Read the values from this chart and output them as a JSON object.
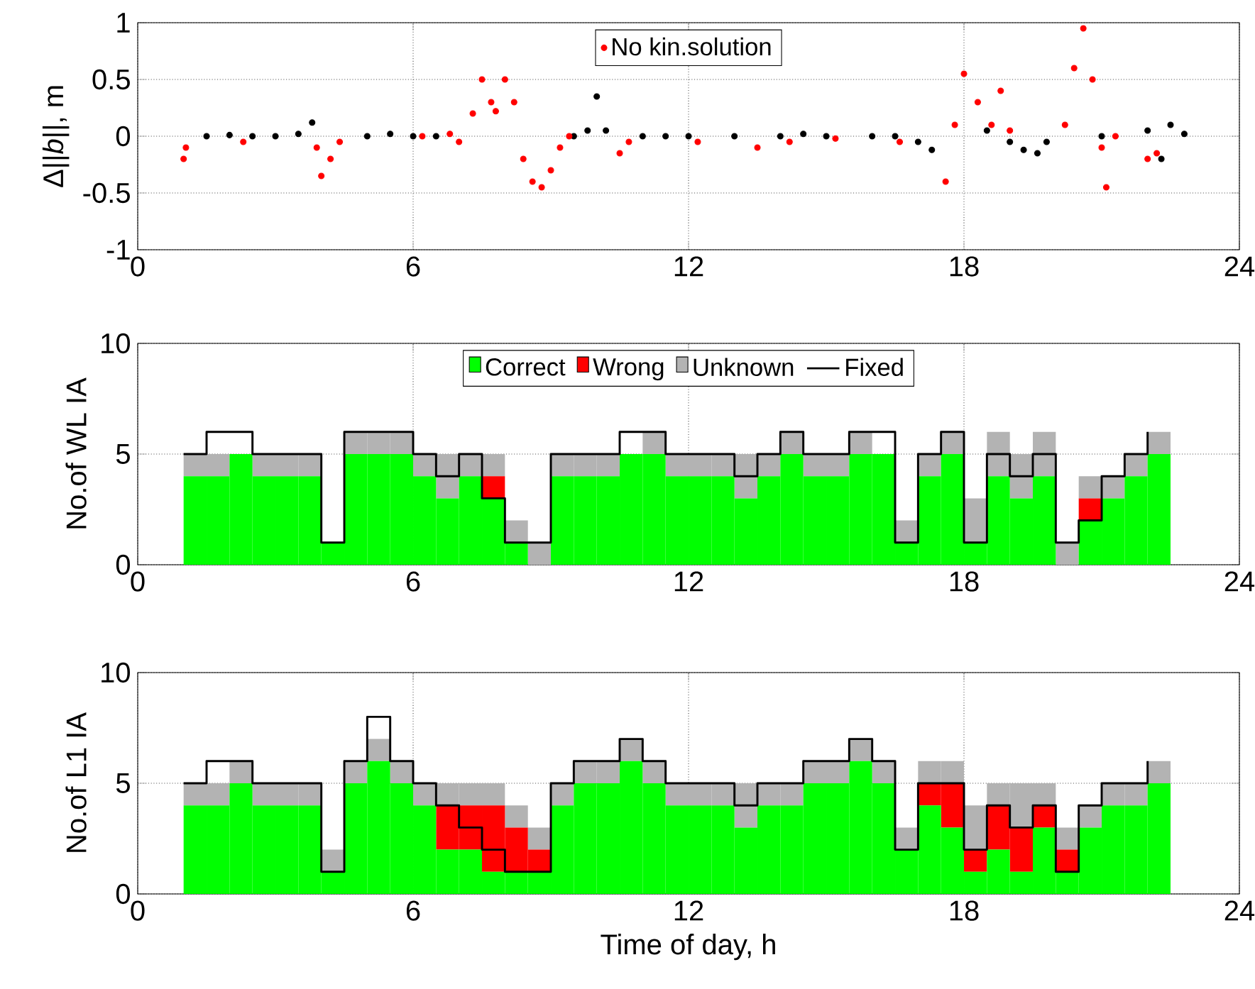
{
  "chart_data": [
    {
      "type": "scatter",
      "ylabel": "Δ||*b*||, m",
      "xlim": [
        0,
        24
      ],
      "ylim": [
        -1,
        1
      ],
      "xticks": [
        0,
        6,
        12,
        18,
        24
      ],
      "yticks": [
        -1,
        -0.5,
        0,
        0.5,
        1
      ],
      "grid": true,
      "legend": "top",
      "series": [
        {
          "color": "#000000",
          "x": [
            1.5,
            2,
            2.5,
            3,
            3.5,
            3.8,
            5,
            5.5,
            6,
            6.5,
            9.5,
            9.8,
            10,
            10.2,
            11,
            11.5,
            12,
            13,
            14,
            14.5,
            15,
            16,
            16.5,
            17,
            17.3,
            18.5,
            19,
            19.3,
            19.6,
            19.8,
            21,
            22,
            22.3,
            22.5,
            22.8
          ],
          "values": [
            0,
            0.01,
            0,
            0,
            0.02,
            0.12,
            0,
            0.02,
            0,
            0,
            0,
            0.05,
            0.35,
            0.05,
            0,
            0,
            0,
            0,
            0,
            0.02,
            0,
            0,
            0,
            -0.05,
            -0.12,
            0.05,
            -0.05,
            -0.12,
            -0.15,
            -0.05,
            0,
            0.05,
            -0.2,
            0.1,
            0.02
          ]
        },
        {
          "name": "No kin.solution",
          "color": "#ff0000",
          "x": [
            1.0,
            1.05,
            2.3,
            3.9,
            4.0,
            4.2,
            4.4,
            6.2,
            6.8,
            7.0,
            7.3,
            7.5,
            7.7,
            7.8,
            8.0,
            8.2,
            8.4,
            8.6,
            8.8,
            9.0,
            9.2,
            9.4,
            10.5,
            10.7,
            12.2,
            13.5,
            14.2,
            15.2,
            16.6,
            17.6,
            17.8,
            18.0,
            18.3,
            18.6,
            18.8,
            19.0,
            20.2,
            20.4,
            20.6,
            20.8,
            21.0,
            21.1,
            21.3,
            22.0,
            22.2
          ],
          "values": [
            -0.2,
            -0.1,
            -0.05,
            -0.1,
            -0.35,
            -0.2,
            -0.05,
            0,
            0.02,
            -0.05,
            0.2,
            0.5,
            0.3,
            0.22,
            0.5,
            0.3,
            -0.2,
            -0.4,
            -0.45,
            -0.3,
            -0.1,
            0,
            -0.15,
            -0.05,
            -0.05,
            -0.1,
            -0.05,
            -0.02,
            -0.05,
            -0.4,
            0.1,
            0.55,
            0.3,
            0.1,
            0.4,
            0.05,
            0.1,
            0.6,
            0.95,
            0.5,
            -0.1,
            -0.45,
            0,
            -0.2,
            -0.15
          ]
        }
      ]
    },
    {
      "type": "bar",
      "stacked": true,
      "ylabel": "No.of WL IA",
      "xlim": [
        0,
        24
      ],
      "ylim": [
        0,
        10
      ],
      "xticks": [
        0,
        6,
        12,
        18,
        24
      ],
      "yticks": [
        0,
        5,
        10
      ],
      "grid": true,
      "legend": "top",
      "x": [
        1.25,
        1.75,
        2.25,
        2.75,
        3.25,
        3.75,
        4.25,
        4.75,
        5.25,
        5.75,
        6.25,
        6.75,
        7.25,
        7.75,
        8.25,
        8.75,
        9.25,
        9.75,
        10.25,
        10.75,
        11.25,
        11.75,
        12.25,
        12.75,
        13.25,
        13.75,
        14.25,
        14.75,
        15.25,
        15.75,
        16.25,
        16.75,
        17.25,
        17.75,
        18.25,
        18.75,
        19.25,
        19.75,
        20.25,
        20.75,
        21.25,
        21.75,
        22.25
      ],
      "series": [
        {
          "name": "Correct",
          "color": "#00ff00",
          "values": [
            4,
            4,
            5,
            4,
            4,
            4,
            1,
            5,
            5,
            5,
            4,
            3,
            4,
            3,
            1,
            0,
            4,
            4,
            4,
            5,
            5,
            4,
            4,
            4,
            3,
            4,
            5,
            4,
            4,
            5,
            5,
            1,
            4,
            5,
            1,
            4,
            3,
            4,
            0,
            2,
            3,
            4,
            5
          ]
        },
        {
          "name": "Wrong",
          "color": "#ff0000",
          "values": [
            0,
            0,
            0,
            0,
            0,
            0,
            0,
            0,
            0,
            0,
            0,
            0,
            0,
            1,
            0,
            0,
            0,
            0,
            0,
            0,
            0,
            0,
            0,
            0,
            0,
            0,
            0,
            0,
            0,
            0,
            0,
            0,
            0,
            0,
            0,
            0,
            0,
            0,
            0,
            1,
            0,
            0,
            0
          ]
        },
        {
          "name": "Unknown",
          "color": "#b3b3b3",
          "values": [
            1,
            1,
            0,
            1,
            1,
            1,
            0,
            1,
            1,
            1,
            1,
            2,
            1,
            1,
            1,
            1,
            1,
            1,
            1,
            0,
            1,
            1,
            1,
            1,
            2,
            1,
            1,
            1,
            1,
            1,
            0,
            1,
            1,
            1,
            2,
            2,
            2,
            2,
            1,
            1,
            1,
            1,
            1
          ]
        },
        {
          "name": "Fixed",
          "type": "step",
          "color": "#000000",
          "x": [
            1.0,
            1.5,
            2.0,
            2.5,
            3.0,
            3.5,
            4.0,
            4.5,
            5.0,
            5.5,
            6.0,
            6.5,
            7.0,
            7.5,
            8.0,
            8.5,
            9.0,
            9.5,
            10.0,
            10.5,
            11.0,
            11.5,
            12.0,
            12.5,
            13.0,
            13.5,
            14.0,
            14.5,
            15.0,
            15.5,
            16.0,
            16.5,
            17.0,
            17.5,
            18.0,
            18.5,
            19.0,
            19.5,
            20.0,
            20.5,
            21.0,
            21.5,
            22.0
          ],
          "values": [
            5,
            6,
            6,
            5,
            5,
            5,
            1,
            6,
            6,
            6,
            5,
            4,
            5,
            3,
            1,
            1,
            5,
            5,
            5,
            6,
            6,
            5,
            5,
            5,
            4,
            5,
            6,
            5,
            5,
            6,
            6,
            1,
            5,
            6,
            1,
            5,
            4,
            5,
            1,
            2,
            4,
            5,
            6
          ]
        }
      ]
    },
    {
      "type": "bar",
      "stacked": true,
      "xlabel": "Time of day, h",
      "ylabel": "No.of L1 IA",
      "xlim": [
        0,
        24
      ],
      "ylim": [
        0,
        10
      ],
      "xticks": [
        0,
        6,
        12,
        18,
        24
      ],
      "yticks": [
        0,
        5,
        10
      ],
      "grid": true,
      "x": [
        1.25,
        1.75,
        2.25,
        2.75,
        3.25,
        3.75,
        4.25,
        4.75,
        5.25,
        5.75,
        6.25,
        6.75,
        7.25,
        7.75,
        8.25,
        8.75,
        9.25,
        9.75,
        10.25,
        10.75,
        11.25,
        11.75,
        12.25,
        12.75,
        13.25,
        13.75,
        14.25,
        14.75,
        15.25,
        15.75,
        16.25,
        16.75,
        17.25,
        17.75,
        18.25,
        18.75,
        19.25,
        19.75,
        20.25,
        20.75,
        21.25,
        21.75,
        22.25
      ],
      "series": [
        {
          "color": "#00ff00",
          "values": [
            4,
            4,
            5,
            4,
            4,
            4,
            1,
            5,
            6,
            5,
            4,
            2,
            2,
            1,
            1,
            1,
            4,
            5,
            5,
            6,
            5,
            4,
            4,
            4,
            3,
            4,
            4,
            5,
            5,
            6,
            5,
            2,
            4,
            3,
            1,
            2,
            1,
            3,
            1,
            3,
            4,
            4,
            5
          ]
        },
        {
          "color": "#ff0000",
          "values": [
            0,
            0,
            0,
            0,
            0,
            0,
            0,
            0,
            0,
            0,
            0,
            2,
            2,
            3,
            2,
            1,
            0,
            0,
            0,
            0,
            0,
            0,
            0,
            0,
            0,
            0,
            0,
            0,
            0,
            0,
            0,
            0,
            1,
            2,
            1,
            2,
            2,
            1,
            1,
            0,
            0,
            0,
            0
          ]
        },
        {
          "color": "#b3b3b3",
          "values": [
            1,
            1,
            1,
            1,
            1,
            1,
            1,
            1,
            1,
            1,
            1,
            1,
            1,
            1,
            1,
            1,
            1,
            1,
            1,
            1,
            1,
            1,
            1,
            1,
            2,
            1,
            1,
            1,
            1,
            1,
            1,
            1,
            1,
            1,
            2,
            1,
            2,
            1,
            1,
            1,
            1,
            1,
            1
          ]
        },
        {
          "type": "step",
          "color": "#000000",
          "x": [
            1.0,
            1.5,
            2.0,
            2.5,
            3.0,
            3.5,
            4.0,
            4.5,
            5.0,
            5.5,
            6.0,
            6.5,
            7.0,
            7.5,
            8.0,
            8.5,
            9.0,
            9.5,
            10.0,
            10.5,
            11.0,
            11.5,
            12.0,
            12.5,
            13.0,
            13.5,
            14.0,
            14.5,
            15.0,
            15.5,
            16.0,
            16.5,
            17.0,
            17.5,
            18.0,
            18.5,
            19.0,
            19.5,
            20.0,
            20.5,
            21.0,
            21.5,
            22.0
          ],
          "values": [
            5,
            6,
            6,
            5,
            5,
            5,
            1,
            6,
            8,
            6,
            5,
            4,
            3,
            2,
            1,
            1,
            5,
            6,
            6,
            7,
            6,
            5,
            5,
            5,
            4,
            5,
            5,
            6,
            6,
            7,
            6,
            2,
            5,
            5,
            2,
            4,
            3,
            4,
            1,
            4,
            5,
            5,
            6
          ]
        }
      ]
    }
  ]
}
